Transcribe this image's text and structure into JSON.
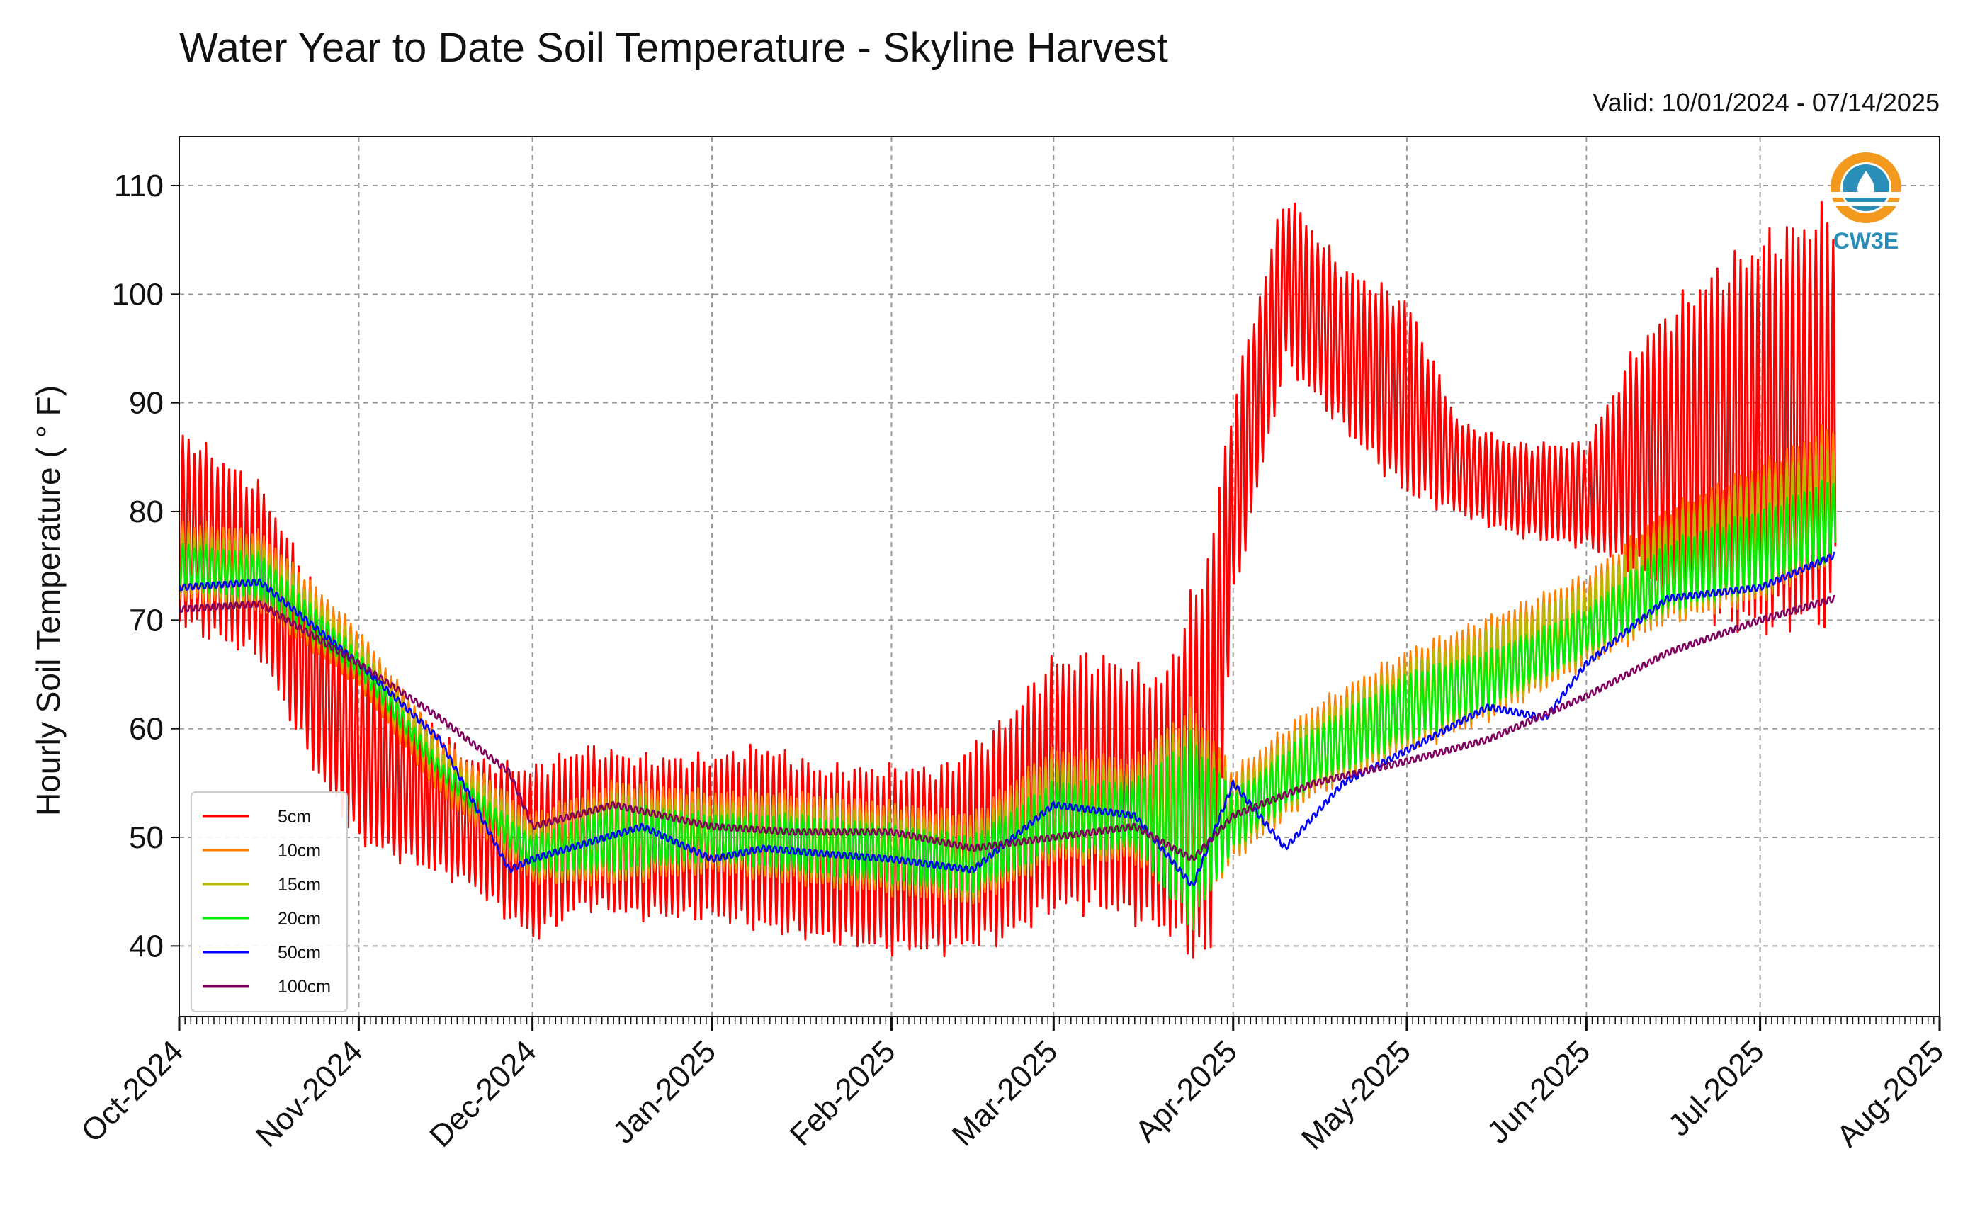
{
  "chart_data": {
    "type": "line",
    "title": "Water Year to Date Soil Temperature - Skyline Harvest",
    "subtitle": "Valid: 10/01/2024 - 07/14/2025",
    "ylabel": "Hourly Soil Temperature ( ° F)",
    "xlabel": "",
    "xlim": [
      "2024-10-01",
      "2025-08-01"
    ],
    "ylim": [
      33.5,
      114.5
    ],
    "yticks": [
      40,
      50,
      60,
      70,
      80,
      90,
      100,
      110
    ],
    "xticks": [
      {
        "date": "2024-10-01",
        "label": "Oct-2024"
      },
      {
        "date": "2024-11-01",
        "label": "Nov-2024"
      },
      {
        "date": "2024-12-01",
        "label": "Dec-2024"
      },
      {
        "date": "2025-01-01",
        "label": "Jan-2025"
      },
      {
        "date": "2025-02-01",
        "label": "Feb-2025"
      },
      {
        "date": "2025-03-01",
        "label": "Mar-2025"
      },
      {
        "date": "2025-04-01",
        "label": "Apr-2025"
      },
      {
        "date": "2025-05-01",
        "label": "May-2025"
      },
      {
        "date": "2025-06-01",
        "label": "Jun-2025"
      },
      {
        "date": "2025-07-01",
        "label": "Jul-2025"
      },
      {
        "date": "2025-08-01",
        "label": "Aug-2025"
      }
    ],
    "grid": true,
    "legend_position": "lower-left",
    "logo_text": "CW3E",
    "series": [
      {
        "name": "5cm",
        "color": "#ff0000",
        "x": [
          "2024-10-01",
          "2024-10-15",
          "2024-10-25",
          "2024-11-01",
          "2024-11-10",
          "2024-11-20",
          "2024-12-01",
          "2024-12-10",
          "2024-12-20",
          "2025-01-01",
          "2025-01-10",
          "2025-01-20",
          "2025-02-01",
          "2025-02-10",
          "2025-02-20",
          "2025-03-01",
          "2025-03-10",
          "2025-03-20",
          "2025-03-28",
          "2025-04-01",
          "2025-04-10",
          "2025-04-20",
          "2025-05-01",
          "2025-05-10",
          "2025-05-20",
          "2025-06-01",
          "2025-06-10",
          "2025-06-20",
          "2025-07-01",
          "2025-07-14"
        ],
        "low": [
          70,
          67,
          56,
          50,
          48,
          46,
          41,
          44,
          43,
          43,
          42,
          41,
          40,
          40,
          41,
          44,
          44,
          42,
          39,
          72,
          94,
          88,
          82,
          80,
          78,
          77,
          75,
          71,
          70,
          71
        ],
        "high": [
          87,
          82,
          72,
          67,
          62,
          57,
          56,
          58,
          57,
          57,
          58,
          56,
          56,
          56,
          60,
          66,
          66,
          64,
          76,
          90,
          109,
          102,
          99,
          88,
          86,
          86,
          95,
          100,
          104,
          107
        ]
      },
      {
        "name": "10cm",
        "color": "#ff8000",
        "x": [
          "2024-10-01",
          "2024-10-15",
          "2024-11-01",
          "2024-11-15",
          "2024-12-01",
          "2024-12-15",
          "2025-01-01",
          "2025-01-15",
          "2025-02-01",
          "2025-02-15",
          "2025-03-01",
          "2025-03-15",
          "2025-03-25",
          "2025-04-01",
          "2025-04-15",
          "2025-05-01",
          "2025-05-15",
          "2025-06-01",
          "2025-06-15",
          "2025-07-01",
          "2025-07-14"
        ],
        "low": [
          72,
          71,
          64,
          54,
          46,
          46,
          47,
          46,
          45,
          44,
          48,
          48,
          43,
          48,
          54,
          58,
          61,
          66,
          70,
          72,
          76
        ],
        "high": [
          79,
          78,
          69,
          59,
          52,
          55,
          54,
          54,
          53,
          52,
          58,
          57,
          62,
          56,
          62,
          67,
          70,
          74,
          80,
          84,
          88
        ]
      },
      {
        "name": "15cm",
        "color": "#b8b800",
        "x": [
          "2024-10-01",
          "2024-10-15",
          "2024-11-01",
          "2024-11-15",
          "2024-12-01",
          "2024-12-15",
          "2025-01-01",
          "2025-01-15",
          "2025-02-01",
          "2025-02-15",
          "2025-03-01",
          "2025-03-15",
          "2025-03-25",
          "2025-04-01",
          "2025-04-15",
          "2025-05-01",
          "2025-05-15",
          "2025-06-01",
          "2025-06-15",
          "2025-07-01",
          "2025-07-14"
        ],
        "low": [
          72.5,
          71.5,
          64.5,
          55,
          46.5,
          46.5,
          47.5,
          46.5,
          45.5,
          44.5,
          48.5,
          48.5,
          43.5,
          48.5,
          54.5,
          58.5,
          61.5,
          66.5,
          70.5,
          72.5,
          76
        ],
        "high": [
          78,
          77,
          68,
          58,
          51,
          54,
          53,
          53,
          52,
          51,
          57,
          56,
          61,
          55,
          61,
          66,
          69,
          73,
          79,
          83,
          86
        ]
      },
      {
        "name": "20cm",
        "color": "#00ee00",
        "x": [
          "2024-10-01",
          "2024-10-15",
          "2024-11-01",
          "2024-11-15",
          "2024-12-01",
          "2024-12-15",
          "2025-01-01",
          "2025-01-15",
          "2025-02-01",
          "2025-02-15",
          "2025-03-01",
          "2025-03-15",
          "2025-03-25",
          "2025-04-01",
          "2025-04-15",
          "2025-05-01",
          "2025-05-15",
          "2025-06-01",
          "2025-06-15",
          "2025-07-01",
          "2025-07-14"
        ],
        "low": [
          73,
          72,
          65,
          55.5,
          47,
          47,
          48,
          47,
          46,
          45,
          49,
          49,
          42,
          49,
          55,
          59,
          62,
          67,
          71,
          73,
          76
        ],
        "high": [
          77,
          76,
          67,
          57,
          50,
          53,
          52,
          52,
          51,
          50,
          55,
          55,
          59,
          54,
          60,
          65,
          67,
          71,
          77,
          80,
          83
        ]
      },
      {
        "name": "50cm",
        "color": "#0000ff",
        "x": [
          "2024-10-01",
          "2024-10-15",
          "2024-11-01",
          "2024-11-15",
          "2024-11-27",
          "2024-12-01",
          "2024-12-20",
          "2025-01-01",
          "2025-01-10",
          "2025-01-20",
          "2025-02-01",
          "2025-02-15",
          "2025-03-01",
          "2025-03-15",
          "2025-03-25",
          "2025-04-01",
          "2025-04-10",
          "2025-04-20",
          "2025-05-01",
          "2025-05-15",
          "2025-05-25",
          "2025-06-01",
          "2025-06-15",
          "2025-07-01",
          "2025-07-14"
        ],
        "y": [
          73,
          73.5,
          66,
          59,
          47,
          48,
          51,
          48,
          49,
          48.5,
          48,
          47,
          53,
          52,
          45.5,
          55,
          49,
          55,
          58,
          62,
          61,
          66,
          72,
          73,
          76
        ]
      },
      {
        "name": "100cm",
        "color": "#800060",
        "x": [
          "2024-10-01",
          "2024-10-15",
          "2024-11-01",
          "2024-11-15",
          "2024-11-27",
          "2024-12-01",
          "2024-12-15",
          "2025-01-01",
          "2025-01-15",
          "2025-02-01",
          "2025-02-15",
          "2025-03-01",
          "2025-03-15",
          "2025-03-25",
          "2025-04-01",
          "2025-04-15",
          "2025-05-01",
          "2025-05-15",
          "2025-06-01",
          "2025-06-15",
          "2025-07-01",
          "2025-07-14"
        ],
        "y": [
          71,
          71.5,
          66,
          61,
          56,
          51,
          53,
          51,
          50.5,
          50.5,
          49,
          50,
          51,
          48,
          52,
          55,
          57,
          59,
          63,
          67,
          70,
          72
        ]
      }
    ]
  }
}
